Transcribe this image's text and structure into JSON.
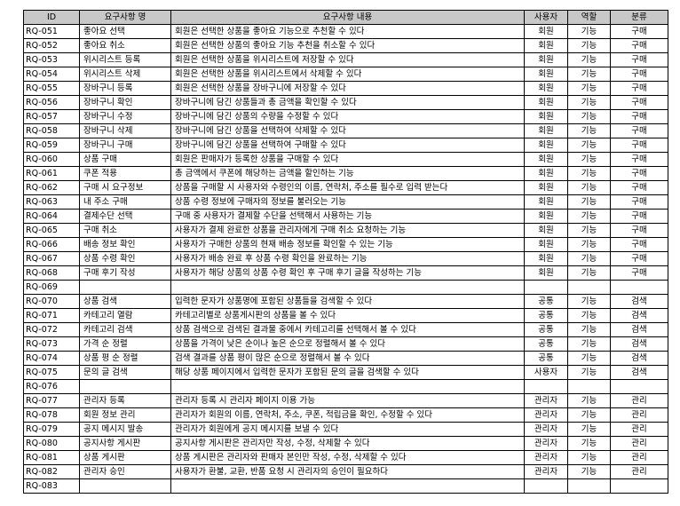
{
  "columns": [
    "ID",
    "요구사항 명",
    "요구사항 내용",
    "사용자",
    "역할",
    "분류"
  ],
  "rows": [
    [
      "RQ-051",
      "좋아요 선택",
      "회원은 선택한 상품을 좋아요 기능으로 추천할 수 있다",
      "회원",
      "기능",
      "구매"
    ],
    [
      "RQ-052",
      "좋아요 취소",
      "회원은 선택한 상품의 좋아요 기능 추천을 취소할 수 있다",
      "회원",
      "기능",
      "구매"
    ],
    [
      "RQ-053",
      "위시리스트 등록",
      "회원은 선택한 상품을 위시리스트에 저장할 수 있다",
      "회원",
      "기능",
      "구매"
    ],
    [
      "RQ-054",
      "위시리스트 삭제",
      "회원은 선택한 상품을 위시리스트에서 삭제할 수 있다",
      "회원",
      "기능",
      "구매"
    ],
    [
      "RQ-055",
      "장바구니 등록",
      "회원은 선택한 상품을 장바구니에 저장할 수 있다",
      "회원",
      "기능",
      "구매"
    ],
    [
      "RQ-056",
      "장바구니 확인",
      "장바구니에 담긴 상품들과 총 금액을 확인할 수 있다",
      "회원",
      "기능",
      "구매"
    ],
    [
      "RQ-057",
      "장바구니 수정",
      "장바구니에 담긴 상품의 수량을 수정할 수 있다",
      "회원",
      "기능",
      "구매"
    ],
    [
      "RQ-058",
      "장바구니 삭제",
      "장바구니에 담긴 상품을 선택하여 삭제할 수 있다",
      "회원",
      "기능",
      "구매"
    ],
    [
      "RQ-059",
      "장바구니 구매",
      "장바구니에 담긴 상품을 선택하여 구매할 수 있다",
      "회원",
      "기능",
      "구매"
    ],
    [
      "RQ-060",
      "상품 구매",
      "회원은 판매자가 등록한 상품을 구매할 수 있다",
      "회원",
      "기능",
      "구매"
    ],
    [
      "RQ-061",
      "쿠폰 적용",
      "총 금액에서 쿠폰에 해당하는 금액을 할인하는 기능",
      "회원",
      "기능",
      "구매"
    ],
    [
      "RQ-062",
      "구매 시 요구정보",
      "상품을 구매할 시 사용자와 수령인의 이름, 연락처, 주소를 필수로 입력 받는다",
      "회원",
      "기능",
      "구매"
    ],
    [
      "RQ-063",
      "내 주소 구매",
      "상품 수령 정보에 구매자의 정보를 불러오는 기능",
      "회원",
      "기능",
      "구매"
    ],
    [
      "RQ-064",
      "결제수단 선택",
      "구매 중 사용자가 결제할 수단을 선택해서 사용하는 기능",
      "회원",
      "기능",
      "구매"
    ],
    [
      "RQ-065",
      "구매 취소",
      "사용자가 결제 완료한 상품을 관리자에게 구매 취소 요청하는 기능",
      "회원",
      "기능",
      "구매"
    ],
    [
      "RQ-066",
      "배송 정보 확인",
      "사용자가 구매한 상품의 현재 배송 정보를 확인할 수 있는 기능",
      "회원",
      "기능",
      "구매"
    ],
    [
      "RQ-067",
      "상품 수령 확인",
      "사용자가 배송 완료 후 상품 수령 확인을 완료하는 기능",
      "회원",
      "기능",
      "구매"
    ],
    [
      "RQ-068",
      "구매 후기 작성",
      "사용자가 해당 상품의 상품 수령 확인 후 구매 후기 글을 작성하는 기능",
      "회원",
      "기능",
      "구매"
    ],
    [
      "RQ-069",
      "",
      "",
      "",
      "",
      ""
    ],
    [
      "RQ-070",
      "상품 검색",
      "입력한 문자가 상품명에 포함된 상품들을 검색할 수 있다",
      "공통",
      "기능",
      "검색"
    ],
    [
      "RQ-071",
      "카테고리 열람",
      "카테고리별로 상품게시판의 상품을 볼 수 있다",
      "공통",
      "기능",
      "검색"
    ],
    [
      "RQ-072",
      "카테고리 검색",
      "상품 검색으로 검색된 결과물 중에서 카테고리를 선택해서 볼 수 있다",
      "공통",
      "기능",
      "검색"
    ],
    [
      "RQ-073",
      "가격 순 정렬",
      "상품을 가격이 낮은 순이나 높은 순으로 정렬해서 볼 수 있다",
      "공통",
      "기능",
      "검색"
    ],
    [
      "RQ-074",
      "상품 평 순 정렬",
      "검색 결과를 상품 평이 많은 순으로 정렬해서 볼 수 있다",
      "공통",
      "기능",
      "검색"
    ],
    [
      "RQ-075",
      "문의 글 검색",
      "해당 상품 페이지에서 입력한 문자가 포함된 문의 글을 검색할 수 있다",
      "사용자",
      "기능",
      "검색"
    ],
    [
      "RQ-076",
      "",
      "",
      "",
      "",
      ""
    ],
    [
      "RQ-077",
      "관리자 등록",
      "관리자 등록 시 관리자 페이지 이용 가능",
      "관리자",
      "기능",
      "관리"
    ],
    [
      "RQ-078",
      "회원 정보 관리",
      "관리자가 회원의 이름, 연락처, 주소, 쿠폰, 적립금을 확인, 수정할 수 있다",
      "관리자",
      "기능",
      "관리"
    ],
    [
      "RQ-079",
      "공지 메시지 발송",
      "관리자가 회원에게 공지 메시지를 보낼 수 있다",
      "관리자",
      "기능",
      "관리"
    ],
    [
      "RQ-080",
      "공지사항 게시판",
      "공지사항 게시판은 관리자만 작성, 수정, 삭제할 수 있다",
      "관리자",
      "기능",
      "관리"
    ],
    [
      "RQ-081",
      "상품 게시판",
      "상품 게시판은 관리자와 판매자 본인만 작성, 수정, 삭제할 수 있다",
      "관리자",
      "기능",
      "관리"
    ],
    [
      "RQ-082",
      "관리자 승인",
      "사용자가 환불, 교환, 반품 요청 시 관리자의 승인이 필요하다",
      "관리자",
      "기능",
      "관리"
    ],
    [
      "RQ-083",
      "",
      "",
      "",
      "",
      ""
    ]
  ]
}
